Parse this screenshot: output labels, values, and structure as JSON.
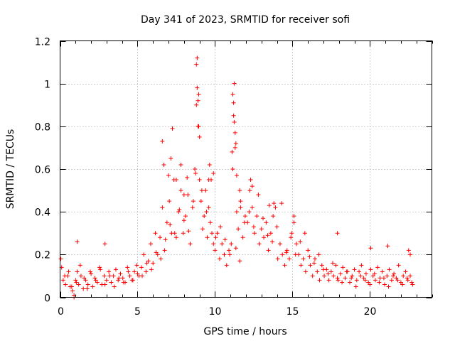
{
  "chart_data": {
    "type": "scatter",
    "title": "Day 341 of 2023, SRMTID for receiver sofi",
    "xlabel": "GPS time / hours",
    "ylabel": "SRMTID / TECUs",
    "xlim": [
      0,
      24
    ],
    "ylim": [
      0,
      1.2
    ],
    "xticks": [
      0,
      5,
      10,
      15,
      20
    ],
    "yticks": [
      0,
      0.2,
      0.4,
      0.6,
      0.8,
      1,
      1.2
    ],
    "xtick_labels": [
      "0",
      "5",
      "10",
      "15",
      "20"
    ],
    "ytick_labels": [
      "0",
      "0.2",
      "0.4",
      "0.6",
      "0.8",
      "1",
      "1.2"
    ],
    "grid": true,
    "marker": "+",
    "series": [
      {
        "name": "SRMTID",
        "color": "#ff0000",
        "x": [
          0.05,
          0.2,
          0.35,
          0.5,
          0.65,
          0.8,
          0.9,
          1.0,
          1.1,
          1.2,
          1.35,
          1.5,
          1.65,
          1.8,
          1.95,
          2.1,
          2.25,
          2.4,
          2.55,
          2.7,
          2.85,
          3.0,
          3.15,
          3.3,
          3.45,
          3.6,
          3.75,
          3.9,
          4.05,
          4.2,
          4.35,
          4.5,
          4.65,
          4.8,
          4.95,
          5.1,
          5.25,
          5.4,
          5.55,
          5.7,
          5.85,
          6.0,
          6.15,
          6.3,
          6.45,
          6.6,
          6.75,
          6.9,
          7.05,
          7.2,
          7.35,
          7.5,
          7.65,
          7.8,
          7.95,
          8.1,
          8.25,
          8.4,
          8.55,
          8.7,
          8.8,
          8.85,
          8.9,
          8.95,
          9.0,
          9.1,
          9.2,
          9.3,
          9.4,
          9.5,
          9.6,
          9.7,
          9.8,
          9.9,
          10.0,
          10.15,
          10.3,
          10.45,
          10.6,
          10.75,
          10.9,
          11.05,
          11.15,
          11.2,
          11.25,
          11.3,
          11.4,
          11.5,
          11.65,
          11.8,
          11.95,
          12.1,
          12.25,
          12.4,
          12.55,
          12.7,
          12.85,
          13.0,
          13.15,
          13.3,
          13.45,
          13.6,
          13.75,
          13.9,
          14.05,
          14.2,
          14.35,
          14.5,
          14.65,
          14.8,
          14.95,
          15.1,
          15.25,
          15.4,
          15.55,
          15.7,
          15.85,
          16.0,
          16.15,
          16.3,
          16.45,
          16.6,
          16.75,
          16.9,
          17.05,
          17.2,
          17.35,
          17.5,
          17.65,
          17.8,
          17.95,
          18.1,
          18.25,
          18.4,
          18.55,
          18.7,
          18.85,
          19.0,
          19.15,
          19.3,
          19.45,
          19.6,
          19.75,
          19.9,
          20.05,
          20.2,
          20.35,
          20.5,
          20.65,
          20.8,
          20.95,
          21.1,
          21.25,
          21.4,
          21.55,
          21.7,
          21.85,
          22.0,
          22.15,
          22.3,
          22.45,
          22.6,
          22.75,
          0.1,
          0.3,
          0.55,
          0.75,
          1.05,
          1.3,
          1.55,
          1.75,
          2.0,
          2.3,
          2.6,
          2.9,
          3.2,
          3.5,
          3.8,
          4.1,
          4.4,
          4.7,
          5.0,
          5.3,
          5.6,
          5.9,
          6.2,
          6.5,
          6.8,
          7.1,
          7.4,
          7.7,
          8.0,
          8.3,
          8.6,
          9.15,
          9.45,
          9.75,
          10.05,
          10.35,
          10.65,
          10.95,
          11.35,
          11.6,
          11.9,
          12.2,
          12.5,
          12.8,
          13.1,
          13.4,
          13.7,
          14.0,
          14.3,
          14.6,
          14.9,
          15.2,
          15.5,
          15.8,
          16.1,
          16.4,
          16.7,
          17.0,
          17.3,
          17.6,
          17.9,
          18.2,
          18.5,
          18.8,
          19.1,
          19.4,
          19.7,
          20.0,
          20.3,
          20.6,
          20.9,
          21.2,
          21.5,
          21.8,
          22.1,
          22.4,
          22.7,
          6.6,
          6.7,
          7.0,
          7.15,
          7.25,
          7.5,
          7.8,
          8.0,
          8.2,
          8.75,
          8.8,
          8.85,
          8.9,
          8.95,
          9.0,
          9.6,
          9.65,
          9.9,
          11.1,
          11.15,
          11.2,
          11.25,
          11.3,
          11.35,
          11.4,
          11.6,
          11.65,
          12.3,
          12.4,
          13.5,
          13.8,
          15.1,
          17.9,
          20.05,
          21.15,
          22.5,
          22.6,
          1.1,
          2.9,
          0.9
        ],
        "y": [
          0.18,
          0.08,
          0.06,
          0.1,
          0.05,
          0.03,
          0.01,
          0.08,
          0.12,
          0.06,
          0.1,
          0.04,
          0.08,
          0.06,
          0.12,
          0.05,
          0.09,
          0.07,
          0.14,
          0.06,
          0.1,
          0.08,
          0.12,
          0.07,
          0.1,
          0.13,
          0.08,
          0.11,
          0.09,
          0.07,
          0.14,
          0.1,
          0.08,
          0.12,
          0.15,
          0.1,
          0.14,
          0.2,
          0.12,
          0.17,
          0.25,
          0.16,
          0.3,
          0.2,
          0.28,
          0.42,
          0.22,
          0.35,
          0.45,
          0.3,
          0.55,
          0.28,
          0.4,
          0.5,
          0.3,
          0.38,
          0.48,
          0.25,
          0.42,
          0.6,
          0.9,
          1.12,
          0.8,
          0.95,
          0.55,
          0.45,
          0.32,
          0.38,
          0.5,
          0.28,
          0.42,
          0.35,
          0.3,
          0.25,
          0.22,
          0.3,
          0.18,
          0.25,
          0.2,
          0.15,
          0.22,
          0.25,
          0.6,
          0.85,
          1.0,
          0.7,
          0.4,
          0.32,
          0.45,
          0.28,
          0.38,
          0.35,
          0.5,
          0.42,
          0.3,
          0.38,
          0.25,
          0.32,
          0.28,
          0.35,
          0.22,
          0.3,
          0.38,
          0.42,
          0.18,
          0.25,
          0.2,
          0.15,
          0.22,
          0.18,
          0.3,
          0.35,
          0.25,
          0.2,
          0.15,
          0.18,
          0.12,
          0.22,
          0.15,
          0.1,
          0.18,
          0.12,
          0.08,
          0.15,
          0.1,
          0.13,
          0.08,
          0.12,
          0.1,
          0.15,
          0.08,
          0.11,
          0.14,
          0.09,
          0.12,
          0.07,
          0.1,
          0.13,
          0.08,
          0.12,
          0.15,
          0.09,
          0.11,
          0.07,
          0.13,
          0.1,
          0.08,
          0.14,
          0.09,
          0.12,
          0.06,
          0.1,
          0.13,
          0.08,
          0.11,
          0.09,
          0.15,
          0.07,
          0.1,
          0.12,
          0.08,
          0.1,
          0.06,
          0.14,
          0.1,
          0.12,
          0.05,
          0.07,
          0.15,
          0.09,
          0.04,
          0.11,
          0.08,
          0.13,
          0.06,
          0.1,
          0.05,
          0.09,
          0.07,
          0.12,
          0.08,
          0.11,
          0.1,
          0.16,
          0.13,
          0.21,
          0.18,
          0.27,
          0.34,
          0.3,
          0.41,
          0.36,
          0.31,
          0.45,
          0.5,
          0.4,
          0.55,
          0.28,
          0.33,
          0.27,
          0.2,
          0.23,
          0.17,
          0.35,
          0.4,
          0.33,
          0.48,
          0.37,
          0.29,
          0.26,
          0.33,
          0.44,
          0.21,
          0.28,
          0.2,
          0.26,
          0.3,
          0.19,
          0.16,
          0.2,
          0.13,
          0.11,
          0.16,
          0.09,
          0.07,
          0.12,
          0.09,
          0.05,
          0.1,
          0.08,
          0.06,
          0.11,
          0.07,
          0.09,
          0.05,
          0.1,
          0.08,
          0.06,
          0.09,
          0.07,
          0.73,
          0.62,
          0.57,
          0.65,
          0.79,
          0.55,
          0.62,
          0.48,
          0.56,
          0.58,
          1.09,
          0.98,
          0.92,
          0.8,
          0.75,
          0.55,
          0.62,
          0.58,
          0.68,
          0.95,
          0.91,
          0.82,
          0.77,
          0.72,
          0.57,
          0.5,
          0.42,
          0.55,
          0.52,
          0.43,
          0.44,
          0.38,
          0.3,
          0.23,
          0.24,
          0.22,
          0.2,
          0.26,
          0.25,
          0.0
        ]
      }
    ]
  }
}
